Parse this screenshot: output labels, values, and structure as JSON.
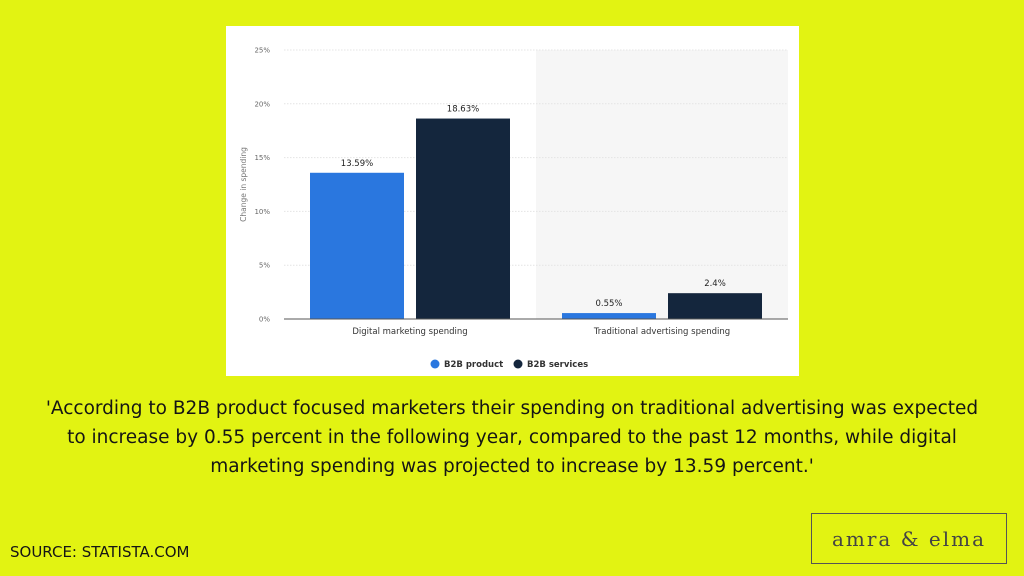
{
  "chart_data": {
    "type": "bar",
    "categories": [
      "Digital marketing spending",
      "Traditional advertising spending"
    ],
    "series": [
      {
        "name": "B2B product",
        "values": [
          13.59,
          0.55
        ],
        "labels": [
          "13.59%",
          "0.55%"
        ],
        "color": "#2a77df"
      },
      {
        "name": "B2B services",
        "values": [
          18.63,
          2.4
        ],
        "labels": [
          "18.63%",
          "2.4%"
        ],
        "color": "#14263d"
      }
    ],
    "ylabel": "Change in spending",
    "ylim": [
      0,
      25
    ],
    "yticks": [
      0,
      5,
      10,
      15,
      20,
      25
    ],
    "ytick_labels": [
      "0%",
      "5%",
      "10%",
      "15%",
      "20%",
      "25%"
    ],
    "grid": true,
    "legend_placement": "bottom"
  },
  "quote": "'According to B2B product focused marketers their spending on traditional advertising was expected to increase by 0.55 percent in the following year, compared to the past 12 months, while digital marketing spending was projected to increase by 13.59 percent.'",
  "source": "SOURCE: STATISTA.COM",
  "logo": "amra & elma"
}
